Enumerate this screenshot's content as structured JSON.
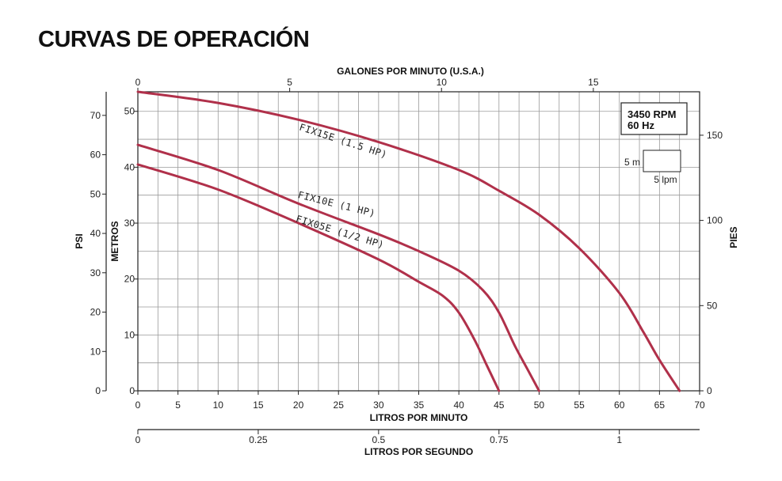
{
  "title": "CURVAS DE OPERACIÓN",
  "chart_data": {
    "type": "line",
    "x_axis_bottom": {
      "label": "LITROS POR MINUTO",
      "range": [
        0,
        70
      ],
      "ticks": [
        "0",
        "5",
        "10",
        "15",
        "20",
        "25",
        "30",
        "35",
        "40",
        "45",
        "50",
        "55",
        "60",
        "65",
        "70"
      ]
    },
    "x_axis_top": {
      "label": "GALONES POR MINUTO (U.S.A.)",
      "range": [
        0,
        18.5
      ],
      "ticks": [
        "0",
        "5",
        "10",
        "15"
      ],
      "tick_values": [
        0,
        5,
        10,
        15
      ]
    },
    "x_axis_bottom2": {
      "label": "LITROS POR SEGUNDO",
      "range": [
        0,
        1.1667
      ],
      "ticks": [
        "0",
        "0.25",
        "0.5",
        "0.75",
        "1"
      ],
      "tick_values": [
        0,
        0.25,
        0.5,
        0.75,
        1
      ]
    },
    "y_axis_left_outer": {
      "label": "PSI",
      "range": [
        0,
        76
      ],
      "ticks": [
        "0",
        "10",
        "20",
        "30",
        "40",
        "50",
        "60",
        "70"
      ],
      "tick_values": [
        0,
        10,
        20,
        30,
        40,
        50,
        60,
        70
      ]
    },
    "y_axis_left_inner": {
      "label": "METROS",
      "range": [
        0,
        53.5
      ],
      "ticks": [
        "0",
        "10",
        "20",
        "30",
        "40",
        "50"
      ],
      "tick_values": [
        0,
        10,
        20,
        30,
        40,
        50
      ]
    },
    "y_axis_right": {
      "label": "PIES",
      "range": [
        0,
        175.5
      ],
      "ticks": [
        "0",
        "50",
        "100",
        "150"
      ],
      "tick_values": [
        0,
        50,
        100,
        150
      ]
    },
    "grid": true,
    "legend_box": {
      "line1": "3450 RPM",
      "line2": "60 Hz",
      "scale_y": "5 m",
      "scale_x": "5 lpm"
    },
    "series": [
      {
        "name": "FIX15E (1.5 HP)",
        "color": "#b0304a",
        "x": [
          0,
          10,
          20,
          30,
          40,
          45,
          50,
          55,
          60,
          63,
          65,
          67.5
        ],
        "y": [
          53.5,
          51.5,
          48.5,
          44.5,
          39.5,
          35.8,
          31.5,
          25.5,
          17.5,
          10.5,
          5.5,
          0
        ]
      },
      {
        "name": "FIX10E (1 HP)",
        "color": "#b0304a",
        "x": [
          0,
          10,
          20,
          30,
          35,
          40,
          43,
          45,
          47,
          48.5,
          50
        ],
        "y": [
          44,
          39.5,
          33.5,
          28,
          25,
          21.5,
          18,
          14,
          8,
          4,
          0
        ]
      },
      {
        "name": "FIX05E (1/2 HP)",
        "color": "#b0304a",
        "x": [
          0,
          10,
          20,
          30,
          35,
          38,
          40,
          42,
          43.5,
          45
        ],
        "y": [
          40.5,
          36,
          30,
          23.5,
          19.5,
          17,
          14,
          9,
          4.5,
          0
        ]
      }
    ]
  }
}
